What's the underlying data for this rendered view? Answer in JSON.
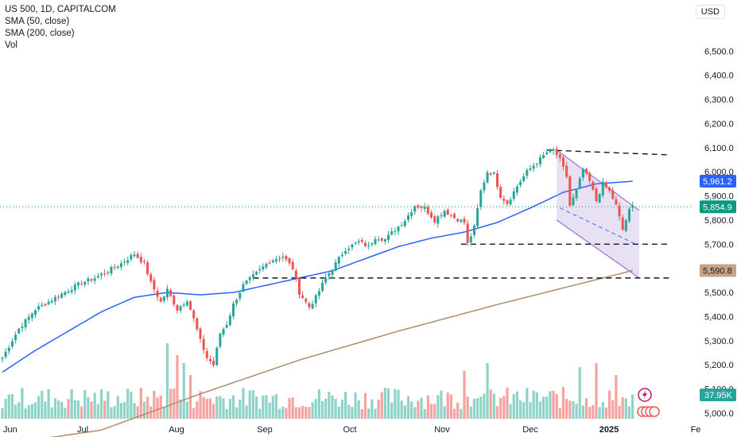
{
  "legend": {
    "title": "US 500, 1D, CAPITALCOM",
    "sma50": "SMA (50, close)",
    "sma200": "SMA (200, close)",
    "vol": "Vol"
  },
  "currency": "USD",
  "colors": {
    "up": "#26a69a",
    "down": "#ef5350",
    "volUp": "#8fd3c8",
    "volDown": "#f5a3a1",
    "sma50": "#2962ff",
    "sma200": "#b08b6c",
    "channel": "#9575cd"
  },
  "badges": {
    "sma50": {
      "label": "5,961.2",
      "value": 5961.2,
      "color": "#2962ff"
    },
    "price": {
      "label": "5,854.9",
      "value": 5854.9,
      "color": "#089981"
    },
    "sma200": {
      "label": "5,590.8",
      "value": 5590.8,
      "color": "#c8a486"
    },
    "volume": {
      "label": "37.95K",
      "color": "#26a69a"
    }
  },
  "chart_data": {
    "type": "candlestick",
    "symbol": "US 500",
    "interval": "1D",
    "ylim": [
      4950,
      6550
    ],
    "y_ticks": [
      "5,000.0",
      "5,100.0",
      "5,200.0",
      "5,300.0",
      "5,400.0",
      "5,500.0",
      "5,600.0",
      "5,700.0",
      "5,800.0",
      "5,900.0",
      "6,000.0",
      "6,100.0",
      "6,200.0",
      "6,300.0",
      "6,400.0",
      "6,500.0"
    ],
    "x_ticks": [
      {
        "label": "Jun",
        "bold": false
      },
      {
        "label": "Jul",
        "bold": false
      },
      {
        "label": "Aug",
        "bold": false
      },
      {
        "label": "Sep",
        "bold": false
      },
      {
        "label": "Oct",
        "bold": false
      },
      {
        "label": "Nov",
        "bold": false
      },
      {
        "label": "Dec",
        "bold": false
      },
      {
        "label": "2025",
        "bold": true
      },
      {
        "label": "Fe",
        "bold": false
      }
    ],
    "anchors": [
      [
        0,
        5230
      ],
      [
        5,
        5350
      ],
      [
        10,
        5430
      ],
      [
        15,
        5470
      ],
      [
        20,
        5510
      ],
      [
        24,
        5540
      ],
      [
        28,
        5560
      ],
      [
        32,
        5590
      ],
      [
        36,
        5620
      ],
      [
        40,
        5660
      ],
      [
        43,
        5620
      ],
      [
        45,
        5540
      ],
      [
        48,
        5460
      ],
      [
        50,
        5510
      ],
      [
        53,
        5430
      ],
      [
        56,
        5470
      ],
      [
        58,
        5390
      ],
      [
        60,
        5300
      ],
      [
        62,
        5230
      ],
      [
        64,
        5200
      ],
      [
        66,
        5330
      ],
      [
        68,
        5370
      ],
      [
        70,
        5450
      ],
      [
        73,
        5530
      ],
      [
        77,
        5580
      ],
      [
        81,
        5630
      ],
      [
        85,
        5650
      ],
      [
        88,
        5600
      ],
      [
        90,
        5500
      ],
      [
        93,
        5440
      ],
      [
        95,
        5480
      ],
      [
        98,
        5560
      ],
      [
        101,
        5620
      ],
      [
        104,
        5680
      ],
      [
        108,
        5710
      ],
      [
        111,
        5690
      ],
      [
        113,
        5730
      ],
      [
        116,
        5720
      ],
      [
        119,
        5760
      ],
      [
        122,
        5800
      ],
      [
        125,
        5860
      ],
      [
        128,
        5850
      ],
      [
        131,
        5800
      ],
      [
        134,
        5840
      ],
      [
        137,
        5810
      ],
      [
        140,
        5790
      ],
      [
        141,
        5700
      ],
      [
        143,
        5770
      ],
      [
        145,
        5920
      ],
      [
        147,
        6000
      ],
      [
        149,
        5990
      ],
      [
        151,
        5900
      ],
      [
        153,
        5870
      ],
      [
        156,
        5940
      ],
      [
        159,
        6000
      ],
      [
        162,
        6040
      ],
      [
        165,
        6080
      ],
      [
        167,
        6090
      ],
      [
        169,
        6050
      ],
      [
        171,
        5980
      ],
      [
        172,
        5860
      ],
      [
        174,
        5920
      ],
      [
        176,
        6010
      ],
      [
        178,
        5960
      ],
      [
        180,
        5880
      ],
      [
        182,
        5950
      ],
      [
        184,
        5920
      ],
      [
        186,
        5860
      ],
      [
        188,
        5760
      ],
      [
        190,
        5840
      ],
      [
        191,
        5855
      ]
    ],
    "sma50_anchors": [
      [
        0,
        5170
      ],
      [
        10,
        5260
      ],
      [
        20,
        5340
      ],
      [
        30,
        5420
      ],
      [
        40,
        5480
      ],
      [
        50,
        5500
      ],
      [
        60,
        5490
      ],
      [
        70,
        5500
      ],
      [
        80,
        5530
      ],
      [
        90,
        5560
      ],
      [
        100,
        5590
      ],
      [
        110,
        5640
      ],
      [
        120,
        5690
      ],
      [
        130,
        5725
      ],
      [
        140,
        5750
      ],
      [
        150,
        5790
      ],
      [
        160,
        5850
      ],
      [
        170,
        5915
      ],
      [
        180,
        5950
      ],
      [
        191,
        5961
      ]
    ],
    "sma200_anchors": [
      [
        0,
        4870
      ],
      [
        30,
        4930
      ],
      [
        60,
        5080
      ],
      [
        90,
        5220
      ],
      [
        120,
        5340
      ],
      [
        150,
        5450
      ],
      [
        191,
        5591
      ]
    ],
    "volume_spikes": [
      [
        50,
        95
      ],
      [
        53,
        80
      ],
      [
        55,
        70
      ],
      [
        57,
        55
      ],
      [
        140,
        60
      ],
      [
        147,
        70
      ],
      [
        175,
        65
      ],
      [
        180,
        70
      ],
      [
        186,
        55
      ]
    ],
    "horizontal_lines": [
      {
        "from": 165,
        "to": 202,
        "y0": 6090,
        "y1": 6070
      },
      {
        "from": 139,
        "to": 202,
        "y0": 5700,
        "y1": 5700
      },
      {
        "from": 76,
        "to": 202,
        "y0": 5560,
        "y1": 5560
      }
    ],
    "channel": {
      "upper": [
        [
          168,
          6090
        ],
        [
          193,
          5840
        ]
      ],
      "lower": [
        [
          168,
          5800
        ],
        [
          193,
          5560
        ]
      ],
      "mid_dashed": [
        [
          169,
          5850
        ],
        [
          192,
          5700
        ]
      ]
    }
  }
}
